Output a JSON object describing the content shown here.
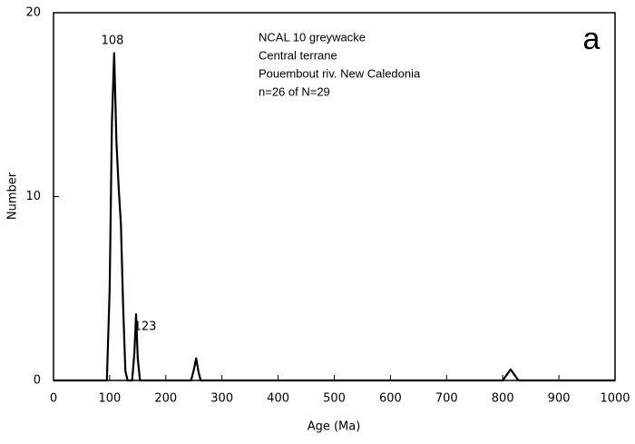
{
  "chart_data": {
    "type": "line",
    "x_label": "Age (Ma)",
    "y_label": "Number",
    "panel_label": "a",
    "info_lines": [
      "NCAL 10 greywacke",
      "Central terrane",
      "Pouembout riv. New Caledonia",
      "n=26 of N=29"
    ],
    "peak_labels": [
      "108",
      "123"
    ],
    "x": [
      0,
      95,
      100,
      104,
      108,
      112,
      116,
      120,
      124,
      128,
      132,
      140,
      144,
      147,
      150,
      154,
      245,
      250,
      254,
      258,
      262,
      800,
      807,
      814,
      821,
      828,
      1000
    ],
    "series": [
      {
        "color": "#000000",
        "values": [
          0,
          0,
          5,
          14,
          17.8,
          13,
          10.5,
          8.5,
          4,
          0.5,
          0,
          0,
          1.5,
          3.6,
          1.2,
          0,
          0,
          0.6,
          1.2,
          0.5,
          0,
          0,
          0.3,
          0.6,
          0.3,
          0,
          0
        ]
      }
    ],
    "xlim": [
      0,
      1000
    ],
    "xticks": [
      0,
      100,
      200,
      300,
      400,
      500,
      600,
      700,
      800,
      900,
      1000
    ],
    "ylim": [
      0,
      20
    ],
    "yticks": [
      0,
      10,
      20
    ]
  }
}
